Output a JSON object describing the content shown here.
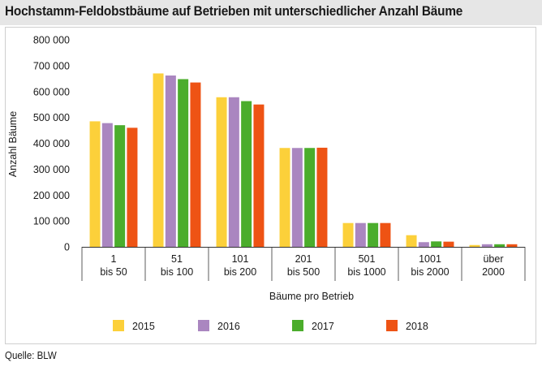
{
  "header": {
    "title": "Hochstamm-Feldobstbäume auf Betrieben mit unterschiedlicher Anzahl Bäume"
  },
  "footer": {
    "source": "Quelle: BLW"
  },
  "colors": {
    "2015": "#fcd03a",
    "2016": "#aa86c0",
    "2017": "#4bad2c",
    "2018": "#ee5314",
    "title_bar": "#e6e6e6",
    "axis": "#333333"
  },
  "chart_data": {
    "type": "bar",
    "title": "Hochstamm-Feldobstbäume auf Betrieben mit unterschiedlicher Anzahl Bäume",
    "xlabel": "Bäume pro Betrieb",
    "ylabel": "Anzahl Bäume",
    "ylim": [
      0,
      800000
    ],
    "yticks": [
      0,
      100000,
      200000,
      300000,
      400000,
      500000,
      600000,
      700000,
      800000
    ],
    "ytick_labels": [
      "0",
      "100 000",
      "200 000",
      "300 000",
      "400 000",
      "500 000",
      "600 000",
      "700 000",
      "800 000"
    ],
    "grid": false,
    "legend_position": "bottom",
    "categories": [
      [
        "1",
        "bis 50"
      ],
      [
        "51",
        "bis 100"
      ],
      [
        "101",
        "bis 200"
      ],
      [
        "201",
        "bis 500"
      ],
      [
        "501",
        "bis 1000"
      ],
      [
        "1001",
        "bis 2000"
      ],
      [
        "über",
        "2000"
      ]
    ],
    "series": [
      {
        "name": "2015",
        "values": [
          485000,
          670000,
          578000,
          382000,
          92000,
          45000,
          7000
        ]
      },
      {
        "name": "2016",
        "values": [
          478000,
          662000,
          578000,
          382000,
          92000,
          18000,
          10000
        ]
      },
      {
        "name": "2017",
        "values": [
          470000,
          648000,
          563000,
          382000,
          92000,
          21000,
          10000
        ]
      },
      {
        "name": "2018",
        "values": [
          460000,
          635000,
          550000,
          383000,
          92000,
          20000,
          10000
        ]
      }
    ]
  }
}
